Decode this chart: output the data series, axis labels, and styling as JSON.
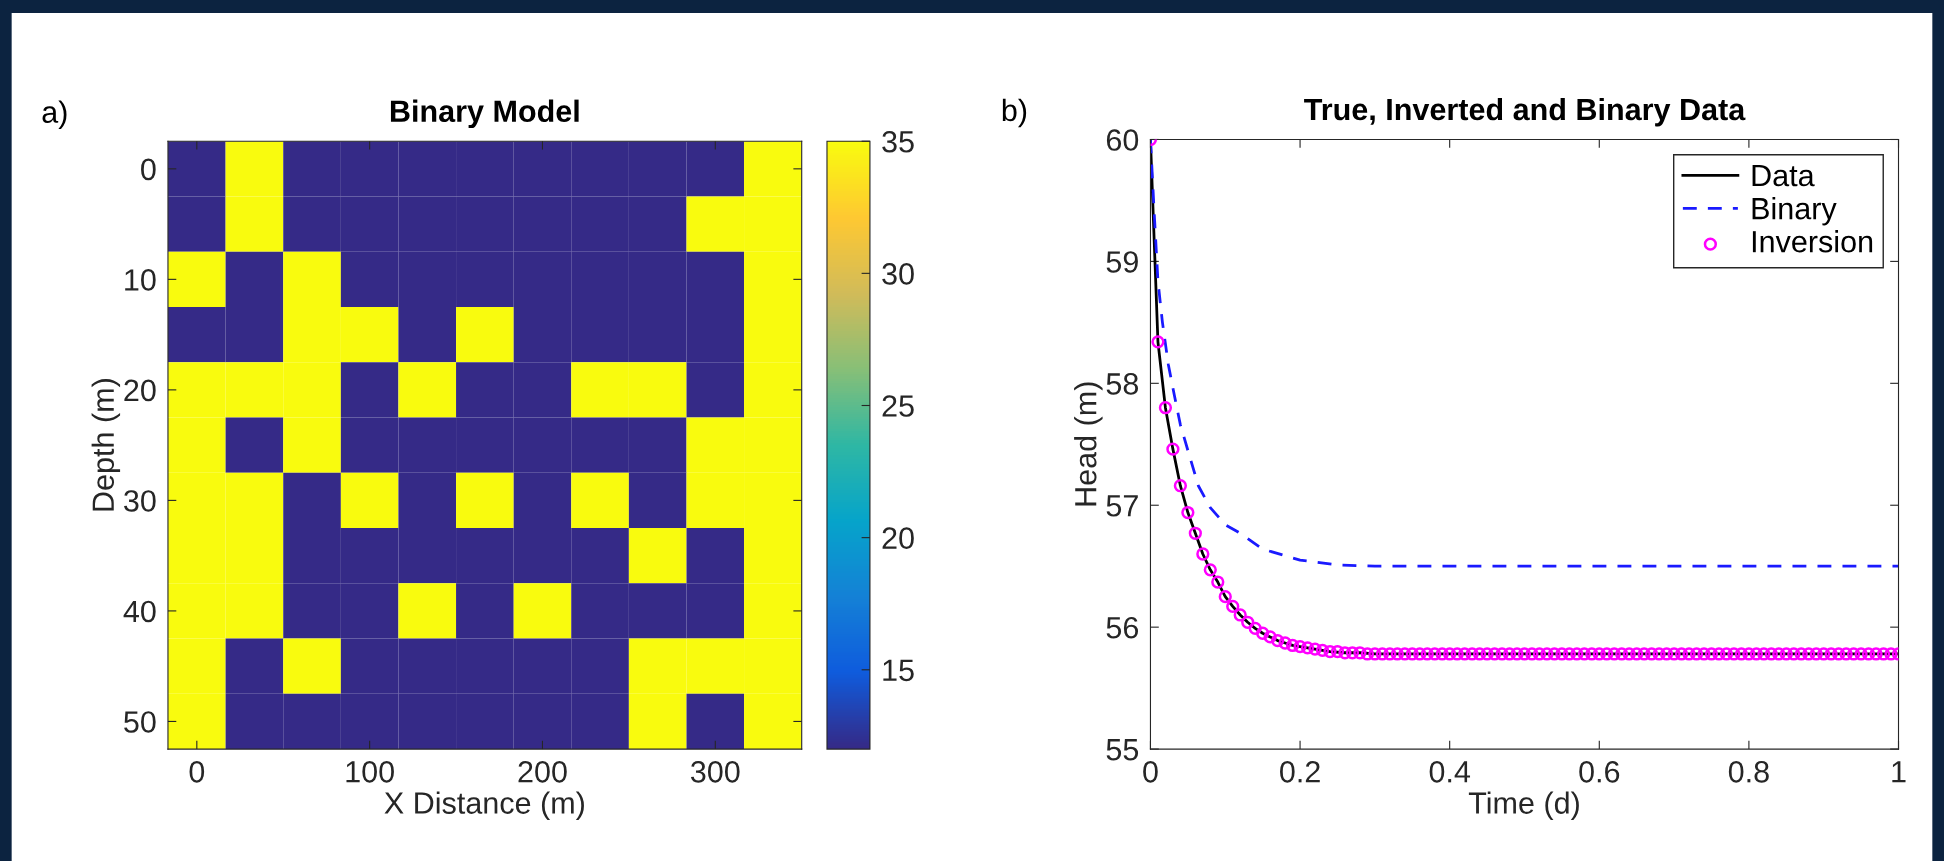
{
  "chart_data": [
    {
      "type": "heatmap",
      "title": "Binary Model",
      "xlabel": "X Distance (m)",
      "ylabel": "Depth (m)",
      "annotations": [
        "a)"
      ],
      "x": [
        0,
        33.3,
        66.7,
        100,
        133.3,
        166.7,
        200,
        233.3,
        266.7,
        300,
        333.3
      ],
      "y": [
        0,
        5,
        10,
        15,
        20,
        25,
        30,
        35,
        40,
        45,
        50
      ],
      "xlim": [
        -16.7,
        350
      ],
      "xticks": [
        0,
        100,
        200,
        300
      ],
      "ylim": [
        52.5,
        -2.5
      ],
      "yticks": [
        0,
        10,
        20,
        30,
        40,
        50
      ],
      "clim": [
        12,
        35
      ],
      "cticks": [
        15,
        20,
        25,
        30,
        35
      ],
      "cells": [
        [
          12,
          35,
          12,
          12,
          12,
          12,
          12,
          12,
          12,
          12,
          35
        ],
        [
          12,
          35,
          12,
          12,
          12,
          12,
          12,
          12,
          12,
          35,
          35
        ],
        [
          35,
          12,
          35,
          12,
          12,
          12,
          12,
          12,
          12,
          12,
          35
        ],
        [
          12,
          12,
          35,
          35,
          12,
          35,
          12,
          12,
          12,
          12,
          35
        ],
        [
          35,
          35,
          35,
          12,
          35,
          12,
          12,
          35,
          35,
          12,
          35
        ],
        [
          35,
          12,
          35,
          12,
          12,
          12,
          12,
          12,
          12,
          35,
          35
        ],
        [
          35,
          35,
          12,
          35,
          12,
          35,
          12,
          35,
          12,
          35,
          35
        ],
        [
          35,
          35,
          12,
          12,
          12,
          12,
          12,
          12,
          35,
          12,
          35
        ],
        [
          35,
          35,
          12,
          12,
          35,
          12,
          35,
          12,
          12,
          12,
          35
        ],
        [
          35,
          12,
          35,
          12,
          12,
          12,
          12,
          12,
          35,
          35,
          35
        ],
        [
          35,
          12,
          12,
          12,
          12,
          12,
          12,
          12,
          35,
          12,
          35
        ]
      ]
    },
    {
      "type": "line",
      "title": "True, Inverted and Binary Data",
      "xlabel": "Time (d)",
      "ylabel": "Head (m)",
      "annotations": [
        "b)"
      ],
      "xlim": [
        0,
        1
      ],
      "xticks": [
        0,
        0.2,
        0.4,
        0.6,
        0.8,
        1
      ],
      "ylim": [
        55,
        60
      ],
      "yticks": [
        55,
        56,
        57,
        58,
        59,
        60
      ],
      "legend": "top right",
      "grid": false,
      "series": [
        {
          "name": "Data",
          "type": "line",
          "line_style": "solid",
          "color": "#000000",
          "x": [
            0,
            0.01,
            0.02,
            0.03,
            0.04,
            0.05,
            0.06,
            0.07,
            0.08,
            0.09,
            0.1,
            0.11,
            0.12,
            0.13,
            0.14,
            0.15,
            0.16,
            0.17,
            0.18,
            0.19,
            0.2,
            0.22,
            0.24,
            0.26,
            0.28,
            0.3,
            0.6,
            1
          ],
          "values": [
            60,
            58.34,
            57.8,
            57.46,
            57.16,
            56.94,
            56.77,
            56.6,
            56.47,
            56.37,
            56.25,
            56.17,
            56.1,
            56.04,
            55.99,
            55.95,
            55.92,
            55.89,
            55.87,
            55.85,
            55.84,
            55.82,
            55.8,
            55.79,
            55.79,
            55.78,
            55.78,
            55.78
          ]
        },
        {
          "name": "Binary",
          "type": "line",
          "line_style": "dashed",
          "color": "#1a1aff",
          "x": [
            0,
            0.005,
            0.01,
            0.016,
            0.024,
            0.032,
            0.04,
            0.05,
            0.064,
            0.08,
            0.1,
            0.12,
            0.15,
            0.2,
            0.25,
            0.3,
            0.5,
            1
          ],
          "values": [
            60,
            59.4,
            58.84,
            58.5,
            58.15,
            57.9,
            57.66,
            57.45,
            57.16,
            56.98,
            56.84,
            56.77,
            56.64,
            56.55,
            56.51,
            56.5,
            56.5,
            56.5
          ]
        },
        {
          "name": "Inversion",
          "type": "scatter",
          "marker": "circle",
          "color": "#ff00ff",
          "x": [
            0,
            0.01,
            0.02,
            0.03,
            0.04,
            0.05,
            0.06,
            0.07,
            0.08,
            0.09,
            0.1,
            0.11,
            0.12,
            0.13,
            0.14,
            0.15,
            0.16,
            0.17,
            0.18,
            0.19,
            0.2,
            0.21,
            0.22,
            0.23,
            0.24,
            0.25,
            0.26,
            0.27,
            0.28,
            0.29,
            0.3,
            0.31,
            0.32,
            0.33,
            0.34,
            0.35,
            0.36,
            0.37,
            0.38,
            0.39,
            0.4,
            0.41,
            0.42,
            0.43,
            0.44,
            0.45,
            0.46,
            0.47,
            0.48,
            0.49,
            0.5,
            0.51,
            0.52,
            0.53,
            0.54,
            0.55,
            0.56,
            0.57,
            0.58,
            0.59,
            0.6,
            0.61,
            0.62,
            0.63,
            0.64,
            0.65,
            0.66,
            0.67,
            0.68,
            0.69,
            0.7,
            0.71,
            0.72,
            0.73,
            0.74,
            0.75,
            0.76,
            0.77,
            0.78,
            0.79,
            0.8,
            0.81,
            0.82,
            0.83,
            0.84,
            0.85,
            0.86,
            0.87,
            0.88,
            0.89,
            0.9,
            0.91,
            0.92,
            0.93,
            0.94,
            0.95,
            0.96,
            0.97,
            0.98,
            0.99,
            1
          ],
          "values": [
            60,
            58.34,
            57.8,
            57.46,
            57.16,
            56.94,
            56.77,
            56.6,
            56.47,
            56.37,
            56.25,
            56.17,
            56.1,
            56.04,
            55.99,
            55.95,
            55.92,
            55.89,
            55.87,
            55.85,
            55.84,
            55.83,
            55.82,
            55.81,
            55.8,
            55.8,
            55.79,
            55.79,
            55.79,
            55.78,
            55.78,
            55.78,
            55.78,
            55.78,
            55.78,
            55.78,
            55.78,
            55.78,
            55.78,
            55.78,
            55.78,
            55.78,
            55.78,
            55.78,
            55.78,
            55.78,
            55.78,
            55.78,
            55.78,
            55.78,
            55.78,
            55.78,
            55.78,
            55.78,
            55.78,
            55.78,
            55.78,
            55.78,
            55.78,
            55.78,
            55.78,
            55.78,
            55.78,
            55.78,
            55.78,
            55.78,
            55.78,
            55.78,
            55.78,
            55.78,
            55.78,
            55.78,
            55.78,
            55.78,
            55.78,
            55.78,
            55.78,
            55.78,
            55.78,
            55.78,
            55.78,
            55.78,
            55.78,
            55.78,
            55.78,
            55.78,
            55.78,
            55.78,
            55.78,
            55.78,
            55.78,
            55.78,
            55.78,
            55.78,
            55.78,
            55.78,
            55.78,
            55.78,
            55.78,
            55.78,
            55.78
          ]
        }
      ]
    }
  ]
}
